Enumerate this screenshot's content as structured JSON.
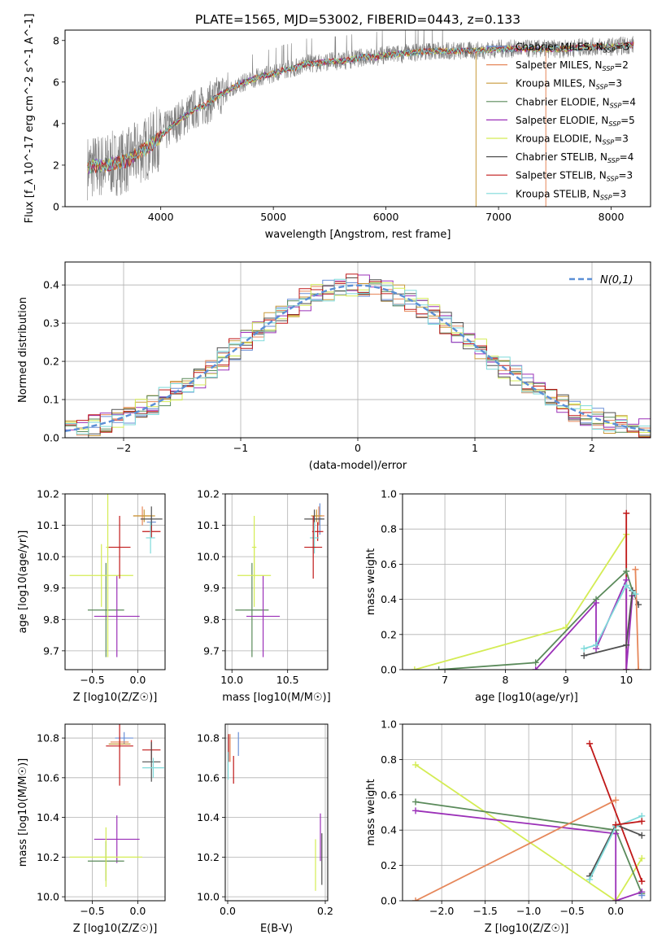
{
  "figure_title": "PLATE=1565, MJD=53002, FIBERID=0443, z=0.133",
  "colors": {
    "Chabrier MILES": "#6a8fd6",
    "Salpeter MILES": "#e6875a",
    "Kroupa MILES": "#c99a3a",
    "Chabrier ELODIE": "#5a8a5a",
    "Salpeter ELODIE": "#9b30b8",
    "Kroupa ELODIE": "#d4ec54",
    "Chabrier STELIB": "#505050",
    "Salpeter STELIB": "#c01818",
    "Kroupa STELIB": "#7fdada",
    "normal": "#5b8fd6",
    "data": "#808080"
  },
  "chart_data": [
    {
      "id": "spectrum",
      "type": "line",
      "title": "PLATE=1565, MJD=53002, FIBERID=0443, z=0.133",
      "xlabel": "wavelength [Angstrom, rest frame]",
      "ylabel": "Flux [f_λ 10^-17 erg cm^-2 s^-1 A^-1]",
      "xlim": [
        3150,
        8350
      ],
      "ylim": [
        0,
        8.5
      ],
      "xticks": [
        4000,
        5000,
        6000,
        7000,
        8000
      ],
      "yticks": [
        0,
        2,
        4,
        6,
        8
      ],
      "grid": false,
      "legend_position": "right",
      "legend": [
        {
          "name": "Chabrier MILES",
          "nssp": "3"
        },
        {
          "name": "Salpeter MILES",
          "nssp": "2"
        },
        {
          "name": "Kroupa MILES",
          "nssp": "3"
        },
        {
          "name": "Chabrier ELODIE",
          "nssp": "4"
        },
        {
          "name": "Salpeter ELODIE",
          "nssp": "5"
        },
        {
          "name": "Kroupa ELODIE",
          "nssp": "3"
        },
        {
          "name": "Chabrier STELIB",
          "nssp": "4"
        },
        {
          "name": "Salpeter STELIB",
          "nssp": "3"
        },
        {
          "name": "Kroupa STELIB",
          "nssp": "3"
        }
      ],
      "data_continuum": {
        "x": [
          3350,
          3500,
          3600,
          3700,
          3800,
          3900,
          4000,
          4100,
          4200,
          4300,
          4400,
          4500,
          4600,
          4700,
          4800,
          4900,
          5000,
          5100,
          5200,
          5300,
          5400,
          5500,
          5600,
          5700,
          5800,
          5900,
          6000,
          6200,
          6400,
          6600,
          6800,
          7000,
          7200,
          7400,
          7600,
          7800,
          8000,
          8200
        ],
        "y": [
          1.9,
          2.0,
          2.1,
          2.2,
          2.6,
          2.9,
          3.4,
          3.9,
          4.3,
          4.7,
          4.9,
          5.3,
          5.6,
          5.9,
          6.1,
          6.3,
          6.4,
          6.6,
          6.7,
          6.9,
          6.9,
          7.0,
          7.0,
          7.1,
          7.2,
          7.2,
          7.3,
          7.4,
          7.5,
          7.5,
          7.5,
          7.6,
          7.6,
          7.6,
          7.6,
          7.7,
          7.7,
          7.8
        ]
      },
      "model_range": [
        3350,
        8200
      ]
    },
    {
      "id": "residuals",
      "type": "histogram",
      "xlabel": "(data-model)/error",
      "ylabel": "Normed distribution",
      "xlim": [
        -2.5,
        2.5
      ],
      "ylim": [
        0,
        0.46
      ],
      "xticks": [
        -2,
        -1,
        0,
        1,
        2
      ],
      "yticks": [
        0.0,
        0.1,
        0.2,
        0.3,
        0.4
      ],
      "grid": true,
      "legend_label": "N(0,1)",
      "bin_width": 0.1,
      "normal_curve": {
        "mean": 0,
        "sigma": 1
      }
    },
    {
      "id": "age-vs-Z",
      "type": "errorbar",
      "xlabel": "Z [log10(Z/Z☉)]",
      "ylabel": "age [log10(age/yr)]",
      "xlim": [
        -0.8,
        0.3
      ],
      "ylim": [
        9.64,
        10.2
      ],
      "xticks": [
        -0.5,
        0.0
      ],
      "yticks": [
        9.7,
        9.8,
        9.9,
        10.0,
        10.1,
        10.2
      ],
      "grid": true,
      "points": [
        {
          "series": "Chabrier MILES",
          "x": 0.15,
          "y": 10.11,
          "xerr": 0.05,
          "yerr": 0.02
        },
        {
          "series": "Salpeter MILES",
          "x": 0.05,
          "y": 10.13,
          "xerr": 0.1,
          "yerr": 0.03
        },
        {
          "series": "Kroupa MILES",
          "x": 0.07,
          "y": 10.13,
          "xerr": 0.12,
          "yerr": 0.02
        },
        {
          "series": "Chabrier ELODIE",
          "x": -0.35,
          "y": 9.83,
          "xerr": 0.2,
          "yerr": 0.15
        },
        {
          "series": "Salpeter ELODIE",
          "x": -0.23,
          "y": 9.81,
          "xerr": 0.25,
          "yerr": 0.13
        },
        {
          "series": "Kroupa ELODIE",
          "x": -0.4,
          "y": 9.94,
          "xerr": 0.35,
          "yerr": 0.1
        },
        {
          "series": "Chabrier STELIB",
          "x": 0.15,
          "y": 10.12,
          "xerr": 0.12,
          "yerr": 0.04
        },
        {
          "series": "Salpeter STELIB",
          "x": 0.15,
          "y": 10.08,
          "xerr": 0.1,
          "yerr": 0.02
        },
        {
          "series": "Kroupa STELIB",
          "x": 0.14,
          "y": 10.06,
          "xerr": 0.05,
          "yerr": 0.05
        },
        {
          "series": "Kroupa ELODIE",
          "x": -0.33,
          "y": 10.03,
          "xerr": 0.02,
          "yerr": 0.35
        },
        {
          "series": "Salpeter STELIB",
          "x": -0.2,
          "y": 10.03,
          "xerr": 0.12,
          "yerr": 0.1
        }
      ]
    },
    {
      "id": "age-vs-mass",
      "type": "errorbar",
      "xlabel": "mass [log10(M/M☉)]",
      "ylabel": "",
      "xlim": [
        9.94,
        10.86
      ],
      "ylim": [
        9.64,
        10.2
      ],
      "xticks": [
        10.0,
        10.5
      ],
      "yticks": [
        9.7,
        9.8,
        9.9,
        10.0,
        10.1,
        10.2
      ],
      "grid": true,
      "points": [
        {
          "series": "Chabrier MILES",
          "x": 10.79,
          "y": 10.12,
          "xerr": 0.02,
          "yerr": 0.05
        },
        {
          "series": "Salpeter MILES",
          "x": 10.78,
          "y": 10.13,
          "xerr": 0.05,
          "yerr": 0.03
        },
        {
          "series": "Kroupa MILES",
          "x": 10.76,
          "y": 10.13,
          "xerr": 0.05,
          "yerr": 0.02
        },
        {
          "series": "Chabrier ELODIE",
          "x": 10.18,
          "y": 9.83,
          "xerr": 0.15,
          "yerr": 0.15
        },
        {
          "series": "Salpeter ELODIE",
          "x": 10.28,
          "y": 9.81,
          "xerr": 0.15,
          "yerr": 0.13
        },
        {
          "series": "Kroupa ELODIE",
          "x": 10.2,
          "y": 9.94,
          "xerr": 0.15,
          "yerr": 0.1
        },
        {
          "series": "Chabrier STELIB",
          "x": 10.74,
          "y": 10.12,
          "xerr": 0.09,
          "yerr": 0.03
        },
        {
          "series": "Salpeter STELIB",
          "x": 10.77,
          "y": 10.08,
          "xerr": 0.05,
          "yerr": 0.03
        },
        {
          "series": "Kroupa STELIB",
          "x": 10.74,
          "y": 10.06,
          "xerr": 0.04,
          "yerr": 0.05
        },
        {
          "series": "Kroupa ELODIE",
          "x": 10.2,
          "y": 10.03,
          "xerr": 0.02,
          "yerr": 0.1
        },
        {
          "series": "Salpeter STELIB",
          "x": 10.73,
          "y": 10.03,
          "xerr": 0.08,
          "yerr": 0.1
        }
      ]
    },
    {
      "id": "weight-vs-age",
      "type": "line",
      "xlabel": "age [log10(age/yr)]",
      "ylabel": "mass weight",
      "xlim": [
        6.3,
        10.4
      ],
      "ylim": [
        0,
        1
      ],
      "xticks": [
        7,
        8,
        9,
        10
      ],
      "yticks": [
        0.0,
        0.2,
        0.4,
        0.6,
        0.8,
        1.0
      ],
      "grid": true,
      "series": [
        {
          "name": "Kroupa ELODIE",
          "x": [
            6.5,
            9.0,
            10.0
          ],
          "y": [
            0.0,
            0.24,
            0.77
          ]
        },
        {
          "name": "Salpeter STELIB",
          "x": [
            10.0,
            10.0
          ],
          "y": [
            0.89,
            0.0
          ]
        },
        {
          "name": "Chabrier ELODIE",
          "x": [
            6.9,
            8.5,
            9.5,
            10.0,
            10.1
          ],
          "y": [
            0.0,
            0.04,
            0.4,
            0.56,
            0.45
          ]
        },
        {
          "name": "Salpeter ELODIE",
          "x": [
            8.5,
            9.5,
            9.5,
            10.0,
            10.0,
            10.1
          ],
          "y": [
            0.0,
            0.38,
            0.12,
            0.51,
            0.0,
            0.42
          ]
        },
        {
          "name": "Chabrier STELIB",
          "x": [
            9.3,
            10.0,
            10.1,
            10.2
          ],
          "y": [
            0.08,
            0.14,
            0.45,
            0.37
          ]
        },
        {
          "name": "Salpeter MILES",
          "x": [
            10.15,
            10.2,
            10.2
          ],
          "y": [
            0.57,
            0.0,
            0.0
          ]
        },
        {
          "name": "Kroupa STELIB",
          "x": [
            9.3,
            9.5,
            10.0,
            10.15
          ],
          "y": [
            0.12,
            0.14,
            0.48,
            0.43
          ]
        }
      ]
    },
    {
      "id": "mass-vs-Z",
      "type": "errorbar",
      "xlabel": "Z [log10(Z/Z☉)]",
      "ylabel": "mass [log10(M/M☉)]",
      "xlim": [
        -0.8,
        0.3
      ],
      "ylim": [
        9.98,
        10.87
      ],
      "xticks": [
        -0.5,
        0.0
      ],
      "yticks": [
        10.0,
        10.2,
        10.4,
        10.6,
        10.8
      ],
      "grid": true,
      "points": [
        {
          "series": "Chabrier MILES",
          "x": -0.15,
          "y": 10.8,
          "xerr": 0.1,
          "yerr": 0.03
        },
        {
          "series": "Salpeter MILES",
          "x": -0.2,
          "y": 10.78,
          "xerr": 0.1,
          "yerr": 0.03
        },
        {
          "series": "Kroupa MILES",
          "x": -0.2,
          "y": 10.77,
          "xerr": 0.12,
          "yerr": 0.02
        },
        {
          "series": "Salpeter STELIB",
          "x": -0.2,
          "y": 10.76,
          "xerr": 0.15,
          "yerr": 0.2
        },
        {
          "series": "Salpeter STELIB",
          "x": 0.15,
          "y": 10.74,
          "xerr": 0.1,
          "yerr": 0.05
        },
        {
          "series": "Chabrier STELIB",
          "x": 0.15,
          "y": 10.68,
          "xerr": 0.1,
          "yerr": 0.1
        },
        {
          "series": "Kroupa STELIB",
          "x": 0.17,
          "y": 10.65,
          "xerr": 0.12,
          "yerr": 0.05
        },
        {
          "series": "Salpeter ELODIE",
          "x": -0.23,
          "y": 10.29,
          "xerr": 0.25,
          "yerr": 0.12
        },
        {
          "series": "Chabrier ELODIE",
          "x": -0.35,
          "y": 10.18,
          "xerr": 0.2,
          "yerr": 0.1
        },
        {
          "series": "Kroupa ELODIE",
          "x": -0.35,
          "y": 10.2,
          "xerr": 0.4,
          "yerr": 0.15
        }
      ]
    },
    {
      "id": "mass-vs-EBV",
      "type": "errorbar",
      "xlabel": "E(B-V)",
      "ylabel": "",
      "xlim": [
        -0.005,
        0.205
      ],
      "ylim": [
        9.98,
        10.87
      ],
      "xticks": [
        0.0,
        0.2
      ],
      "yticks": [
        10.0,
        10.2,
        10.4,
        10.6,
        10.8
      ],
      "grid": true,
      "points": [
        {
          "series": "Chabrier MILES",
          "x": 0.022,
          "y": 10.77,
          "xerr": 0.0,
          "yerr": 0.06
        },
        {
          "series": "Salpeter MILES",
          "x": 0.005,
          "y": 10.75,
          "xerr": 0.0,
          "yerr": 0.07
        },
        {
          "series": "Salpeter STELIB",
          "x": 0.002,
          "y": 10.75,
          "xerr": 0.0,
          "yerr": 0.07
        },
        {
          "series": "Kroupa STELIB",
          "x": 0.001,
          "y": 10.66,
          "xerr": 0.0,
          "yerr": 0.07
        },
        {
          "series": "Salpeter STELIB",
          "x": 0.012,
          "y": 10.64,
          "xerr": 0.0,
          "yerr": 0.07
        },
        {
          "series": "Salpeter ELODIE",
          "x": 0.19,
          "y": 10.3,
          "xerr": 0.0,
          "yerr": 0.12
        },
        {
          "series": "Chabrier STELIB",
          "x": 0.193,
          "y": 10.19,
          "xerr": 0.0,
          "yerr": 0.13
        },
        {
          "series": "Kroupa ELODIE",
          "x": 0.18,
          "y": 10.16,
          "xerr": 0.0,
          "yerr": 0.13
        }
      ]
    },
    {
      "id": "weight-vs-Z",
      "type": "line",
      "xlabel": "Z [log10(Z/Z☉)]",
      "ylabel": "mass weight",
      "xlim": [
        -2.45,
        0.4
      ],
      "ylim": [
        0,
        1
      ],
      "xticks": [
        -2.0,
        -1.5,
        -1.0,
        -0.5,
        0.0
      ],
      "yticks": [
        0.0,
        0.2,
        0.4,
        0.6,
        0.8,
        1.0
      ],
      "grid": true,
      "series": [
        {
          "name": "Kroupa ELODIE",
          "x": [
            -2.3,
            0.0,
            0.3
          ],
          "y": [
            0.77,
            0.0,
            0.24
          ]
        },
        {
          "name": "Salpeter STELIB",
          "x": [
            -0.3,
            0.3
          ],
          "y": [
            0.89,
            0.11
          ]
        },
        {
          "name": "Chabrier ELODIE",
          "x": [
            -2.3,
            0.0,
            0.3
          ],
          "y": [
            0.56,
            0.4,
            0.04
          ]
        },
        {
          "name": "Salpeter ELODIE",
          "x": [
            -2.3,
            0.0,
            0.0,
            0.3
          ],
          "y": [
            0.51,
            0.38,
            0.0,
            0.05
          ]
        },
        {
          "name": "Salpeter MILES",
          "x": [
            -2.3,
            0.0
          ],
          "y": [
            0.0,
            0.57
          ]
        },
        {
          "name": "Chabrier STELIB",
          "x": [
            -0.3,
            0.0,
            0.3
          ],
          "y": [
            0.14,
            0.43,
            0.37
          ]
        },
        {
          "name": "Kroupa STELIB",
          "x": [
            -0.3,
            0.0,
            0.3
          ],
          "y": [
            0.12,
            0.42,
            0.48
          ]
        },
        {
          "name": "Salpeter STELIB",
          "x": [
            0.0,
            0.3
          ],
          "y": [
            0.43,
            0.45
          ]
        },
        {
          "name": "Chabrier MILES",
          "x": [
            0.3
          ],
          "y": [
            0.03
          ]
        }
      ]
    }
  ]
}
